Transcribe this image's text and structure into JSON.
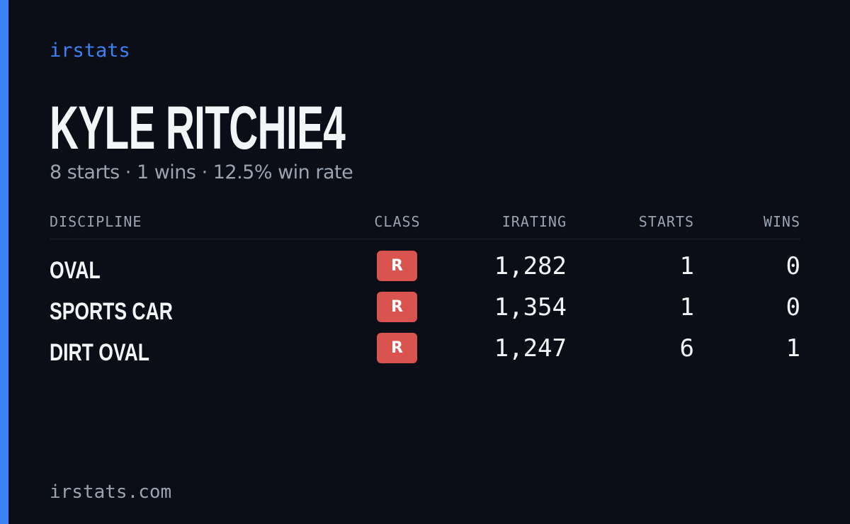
{
  "brand": "irstats",
  "profile": {
    "name": "KYLE RITCHIE4",
    "summary": "8 starts · 1 wins · 12.5% win rate"
  },
  "table": {
    "headers": [
      "DISCIPLINE",
      "CLASS",
      "IRATING",
      "STARTS",
      "WINS"
    ],
    "rows": [
      [
        "OVAL",
        "R",
        "1,282",
        "1",
        "0"
      ],
      [
        "SPORTS CAR",
        "R",
        "1,354",
        "1",
        "0"
      ],
      [
        "DIRT OVAL",
        "R",
        "1,247",
        "6",
        "1"
      ]
    ]
  },
  "footer": "irstats.com"
}
